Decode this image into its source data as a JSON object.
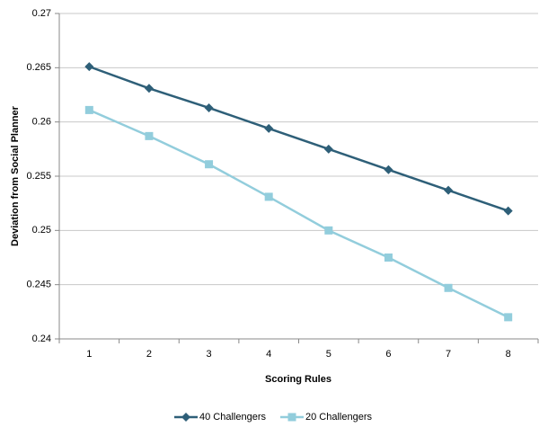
{
  "chart_data": {
    "type": "line",
    "x_label": "Scoring Rules",
    "y_label": "Deviation from Social Planner",
    "categories": [
      "1",
      "2",
      "3",
      "4",
      "5",
      "6",
      "7",
      "8"
    ],
    "series": [
      {
        "name": "40 Challengers",
        "color": "#2e5f78",
        "marker": "diamond",
        "values": [
          0.2651,
          0.2631,
          0.2613,
          0.2594,
          0.2575,
          0.2556,
          0.2537,
          0.2518
        ]
      },
      {
        "name": "20 Challengers",
        "color": "#92cddc",
        "marker": "square",
        "values": [
          0.2611,
          0.2587,
          0.2561,
          0.2531,
          0.25,
          0.2475,
          0.2447,
          0.242
        ]
      }
    ],
    "ylim": [
      0.24,
      0.27
    ],
    "yticks": [
      0.24,
      0.245,
      0.25,
      0.255,
      0.26,
      0.265,
      0.27
    ],
    "grid": true,
    "legend": "bottom"
  }
}
